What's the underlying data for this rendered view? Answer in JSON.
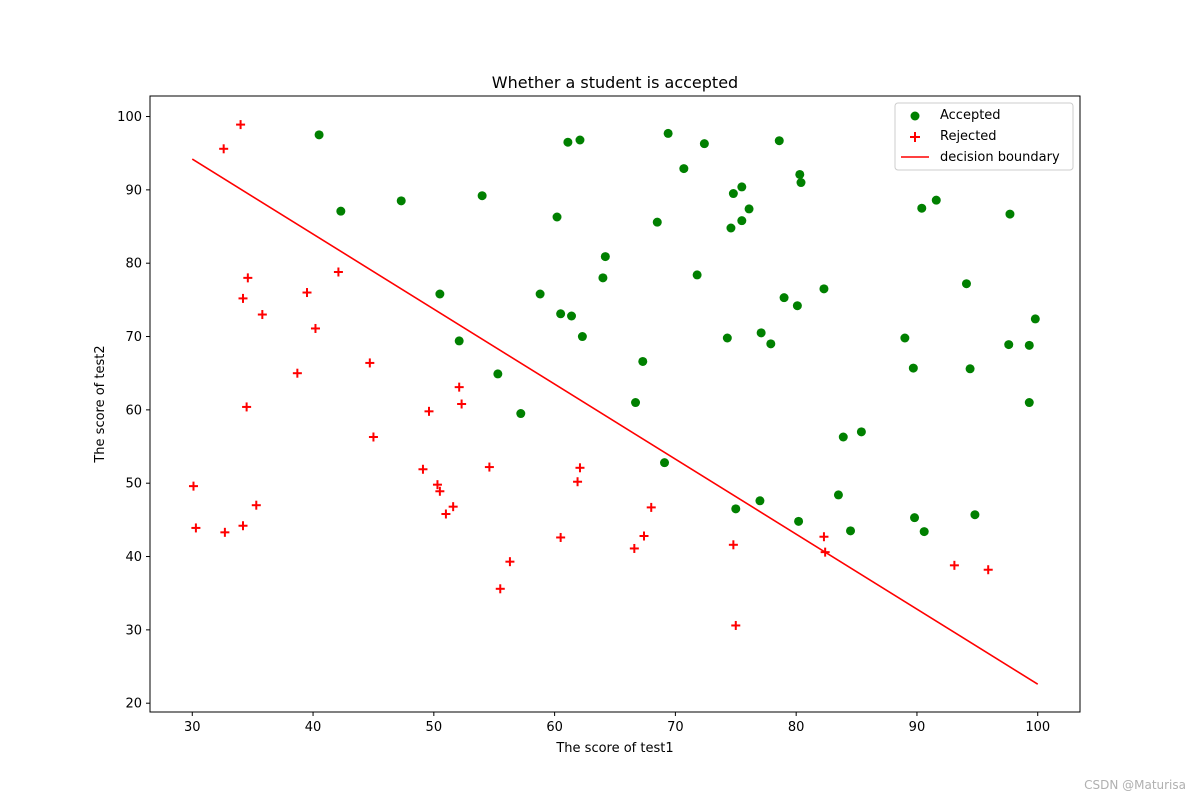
{
  "chart_data": {
    "type": "scatter",
    "title": "Whether a student is accepted",
    "xlabel": "The score of test1",
    "ylabel": "The score of test2",
    "xlim": [
      26.5,
      103.5
    ],
    "ylim": [
      18.8,
      102.8
    ],
    "xticks": [
      30,
      40,
      50,
      60,
      70,
      80,
      90,
      100
    ],
    "yticks": [
      20,
      30,
      40,
      50,
      60,
      70,
      80,
      90,
      100
    ],
    "legend_position": "top-right",
    "series": [
      {
        "name": "Accepted",
        "marker": "circle",
        "color": "#008000",
        "points": [
          [
            40.5,
            97.5
          ],
          [
            61.1,
            96.5
          ],
          [
            62.1,
            96.8
          ],
          [
            69.4,
            97.7
          ],
          [
            72.4,
            96.3
          ],
          [
            78.6,
            96.7
          ],
          [
            70.7,
            92.9
          ],
          [
            80.3,
            92.1
          ],
          [
            80.4,
            91.0
          ],
          [
            74.8,
            89.5
          ],
          [
            75.5,
            90.4
          ],
          [
            76.1,
            87.4
          ],
          [
            42.3,
            87.1
          ],
          [
            47.3,
            88.5
          ],
          [
            54.0,
            89.2
          ],
          [
            60.2,
            86.3
          ],
          [
            68.5,
            85.6
          ],
          [
            75.5,
            85.8
          ],
          [
            74.6,
            84.8
          ],
          [
            64.2,
            80.9
          ],
          [
            64.0,
            78.0
          ],
          [
            71.8,
            78.4
          ],
          [
            90.4,
            87.5
          ],
          [
            91.6,
            88.6
          ],
          [
            97.7,
            86.7
          ],
          [
            94.1,
            77.2
          ],
          [
            82.3,
            76.5
          ],
          [
            79.0,
            75.3
          ],
          [
            80.1,
            74.2
          ],
          [
            50.5,
            75.8
          ],
          [
            58.8,
            75.8
          ],
          [
            60.5,
            73.1
          ],
          [
            61.4,
            72.8
          ],
          [
            62.3,
            70.0
          ],
          [
            74.3,
            69.8
          ],
          [
            77.1,
            70.5
          ],
          [
            77.9,
            69.0
          ],
          [
            89.0,
            69.8
          ],
          [
            99.8,
            72.4
          ],
          [
            97.6,
            68.9
          ],
          [
            99.3,
            68.8
          ],
          [
            52.1,
            69.4
          ],
          [
            55.3,
            64.9
          ],
          [
            67.3,
            66.6
          ],
          [
            89.7,
            65.7
          ],
          [
            94.4,
            65.6
          ],
          [
            57.2,
            59.5
          ],
          [
            66.7,
            61.0
          ],
          [
            99.3,
            61.0
          ],
          [
            83.9,
            56.3
          ],
          [
            85.4,
            57.0
          ],
          [
            69.1,
            52.8
          ],
          [
            83.5,
            48.4
          ],
          [
            77.0,
            47.6
          ],
          [
            75.0,
            46.5
          ],
          [
            94.8,
            45.7
          ],
          [
            89.8,
            45.3
          ],
          [
            80.2,
            44.8
          ],
          [
            84.5,
            43.5
          ],
          [
            90.6,
            43.4
          ]
        ]
      },
      {
        "name": "Rejected",
        "marker": "plus",
        "color": "#ff0000",
        "points": [
          [
            34.0,
            98.9
          ],
          [
            32.6,
            95.6
          ],
          [
            42.1,
            78.8
          ],
          [
            34.6,
            78.0
          ],
          [
            34.2,
            75.2
          ],
          [
            39.5,
            76.0
          ],
          [
            35.8,
            73.0
          ],
          [
            40.2,
            71.1
          ],
          [
            44.7,
            66.4
          ],
          [
            38.7,
            65.0
          ],
          [
            52.1,
            63.1
          ],
          [
            52.3,
            60.8
          ],
          [
            34.5,
            60.4
          ],
          [
            49.6,
            59.8
          ],
          [
            45.0,
            56.3
          ],
          [
            49.1,
            51.9
          ],
          [
            54.6,
            52.2
          ],
          [
            62.1,
            52.1
          ],
          [
            61.9,
            50.2
          ],
          [
            30.1,
            49.6
          ],
          [
            50.3,
            49.8
          ],
          [
            50.5,
            48.9
          ],
          [
            35.3,
            47.0
          ],
          [
            51.6,
            46.8
          ],
          [
            68.0,
            46.7
          ],
          [
            51.0,
            45.8
          ],
          [
            34.2,
            44.2
          ],
          [
            30.3,
            43.9
          ],
          [
            32.7,
            43.3
          ],
          [
            60.5,
            42.6
          ],
          [
            67.4,
            42.8
          ],
          [
            82.3,
            42.7
          ],
          [
            74.8,
            41.6
          ],
          [
            66.6,
            41.1
          ],
          [
            82.4,
            40.6
          ],
          [
            56.3,
            39.3
          ],
          [
            93.1,
            38.8
          ],
          [
            95.9,
            38.2
          ],
          [
            55.5,
            35.6
          ],
          [
            75.0,
            30.6
          ]
        ]
      },
      {
        "name": "decision boundary",
        "marker": "line",
        "color": "#ff0000",
        "points": [
          [
            30.0,
            94.2
          ],
          [
            100.0,
            22.6
          ]
        ]
      }
    ]
  },
  "footer": {
    "watermark": "CSDN @Maturisa"
  }
}
